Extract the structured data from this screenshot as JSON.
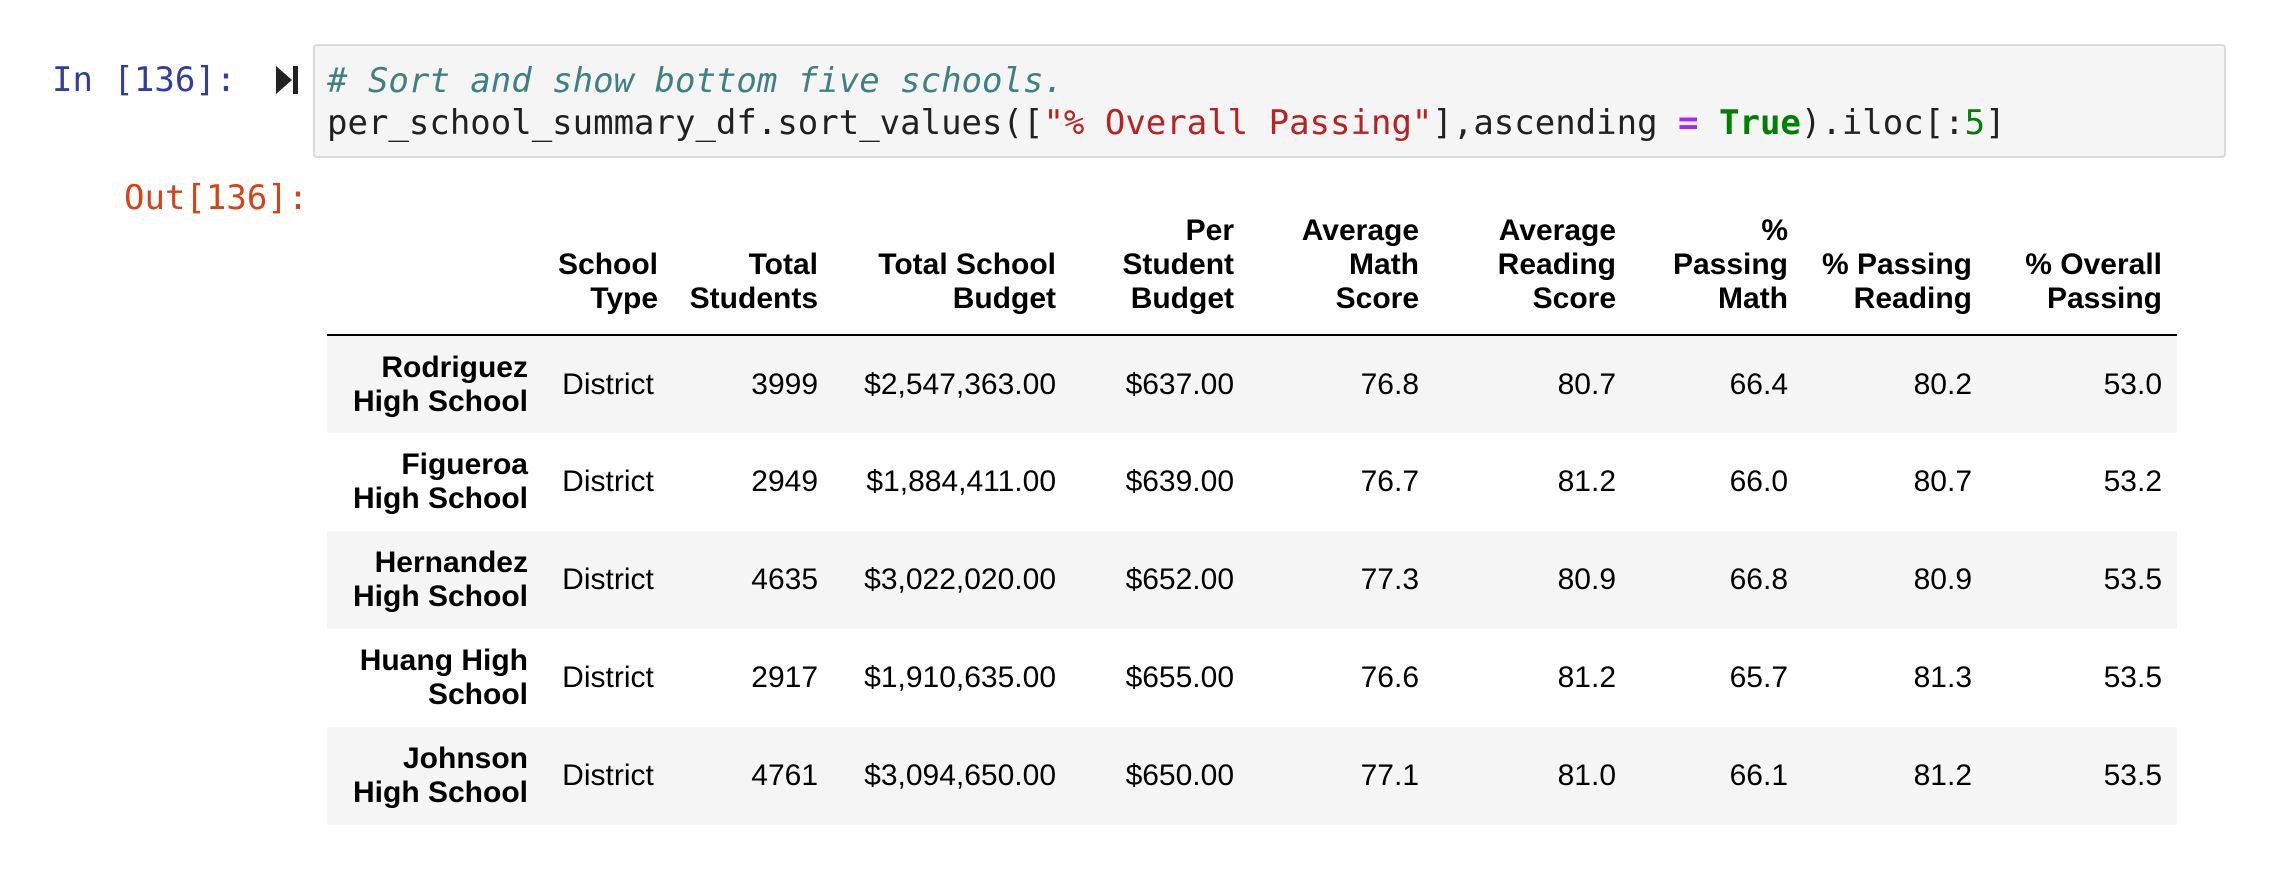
{
  "input_prompt": "In [136]:",
  "output_prompt": "Out[136]:",
  "code": {
    "comment": "# Sort and show bottom five schools.",
    "line2_part1": "per_school_summary_df.sort_values([",
    "line2_string": "\"% Overall Passing\"",
    "line2_part2": "],ascending ",
    "line2_operator": "=",
    "line2_space": " ",
    "line2_keyword": "True",
    "line2_part3": ").iloc[:",
    "line2_number": "5",
    "line2_part4": "]"
  },
  "table": {
    "index_header": "",
    "columns": [
      "School Type",
      "Total Students",
      "Total School Budget",
      "Per Student Budget",
      "Average Math Score",
      "Average Reading Score",
      "% Passing Math",
      "% Passing Reading",
      "% Overall Passing"
    ],
    "rows": [
      {
        "index": "Rodriguez High School",
        "cells": [
          "District",
          "3999",
          "$2,547,363.00",
          "$637.00",
          "76.8",
          "80.7",
          "66.4",
          "80.2",
          "53.0"
        ]
      },
      {
        "index": "Figueroa High School",
        "cells": [
          "District",
          "2949",
          "$1,884,411.00",
          "$639.00",
          "76.7",
          "81.2",
          "66.0",
          "80.7",
          "53.2"
        ]
      },
      {
        "index": "Hernandez High School",
        "cells": [
          "District",
          "4635",
          "$3,022,020.00",
          "$652.00",
          "77.3",
          "80.9",
          "66.8",
          "80.9",
          "53.5"
        ]
      },
      {
        "index": "Huang High School",
        "cells": [
          "District",
          "2917",
          "$1,910,635.00",
          "$655.00",
          "76.6",
          "81.2",
          "65.7",
          "81.3",
          "53.5"
        ]
      },
      {
        "index": "Johnson High School",
        "cells": [
          "District",
          "4761",
          "$3,094,650.00",
          "$650.00",
          "77.1",
          "81.0",
          "66.1",
          "81.2",
          "53.5"
        ]
      }
    ]
  },
  "icons": {
    "run": "run-cell-icon"
  }
}
